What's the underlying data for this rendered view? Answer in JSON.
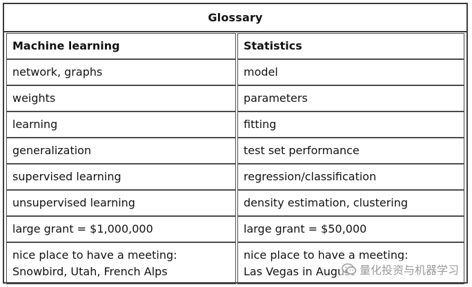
{
  "title": "Glossary",
  "columns": [
    "Machine learning",
    "Statistics"
  ],
  "rows": [
    [
      "network, graphs",
      "model"
    ],
    [
      "weights",
      "parameters"
    ],
    [
      "learning",
      "fitting"
    ],
    [
      "generalization",
      "test set performance"
    ],
    [
      "supervised learning",
      "regression/classification"
    ],
    [
      "unsupervised learning",
      "density estimation, clustering"
    ],
    [
      "large grant = $1,000,000",
      "large grant = $50,000"
    ]
  ],
  "last_row": {
    "left_line1": "nice place to have a meeting:",
    "left_line2": "Snowbird, Utah, French Alps",
    "right_line1": "nice place to have a meeting:",
    "right_line2": "Las Vegas in August"
  },
  "watermark": {
    "text": "量化投资与机器学习",
    "icon": "wechat-logo-icon"
  }
}
